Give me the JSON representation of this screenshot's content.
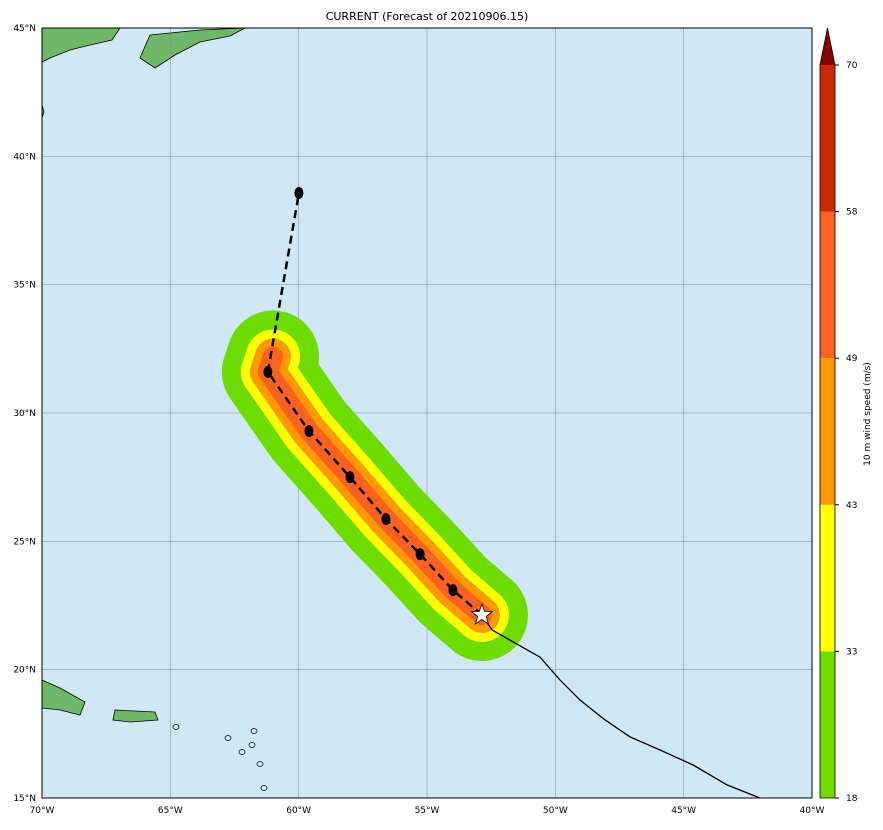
{
  "title": "CURRENT (Forecast of 20210906.15)",
  "map": {
    "lon_range": [
      -70,
      -40
    ],
    "lat_range": [
      15,
      45
    ],
    "ocean_color": "#d0e7f5",
    "land_color": "#6fb86a",
    "lon_ticks": [
      -70,
      -65,
      -60,
      -55,
      -50,
      -45,
      -40
    ],
    "lon_labels": [
      "70°W",
      "65°W",
      "60°W",
      "55°W",
      "50°W",
      "45°W",
      "40°W"
    ],
    "lat_ticks": [
      15,
      20,
      25,
      30,
      35,
      40,
      45
    ],
    "lat_labels": [
      "15°N",
      "20°N",
      "25°N",
      "30°N",
      "35°N",
      "40°N",
      "45°N"
    ]
  },
  "current_position": {
    "lon": -52.86,
    "lat": 22.13,
    "icon": "star-icon"
  },
  "forecast_track": [
    {
      "lon": -52.86,
      "lat": 22.13
    },
    {
      "lon": -53.99,
      "lat": 23.1
    },
    {
      "lon": -55.27,
      "lat": 24.5
    },
    {
      "lon": -56.6,
      "lat": 25.87
    },
    {
      "lon": -58.0,
      "lat": 27.5
    },
    {
      "lon": -59.6,
      "lat": 29.3
    },
    {
      "lon": -61.2,
      "lat": 31.6
    },
    {
      "lon": -59.99,
      "lat": 38.57
    }
  ],
  "past_track": [
    {
      "lon": -52.86,
      "lat": 22.13
    },
    {
      "lon": -52.47,
      "lat": 21.55
    },
    {
      "lon": -50.6,
      "lat": 20.49
    },
    {
      "lon": -49.82,
      "lat": 19.6
    },
    {
      "lon": -49.04,
      "lat": 18.82
    },
    {
      "lon": -48.06,
      "lat": 18.04
    },
    {
      "lon": -47.09,
      "lat": 17.38
    },
    {
      "lon": -45.92,
      "lat": 16.87
    },
    {
      "lon": -44.64,
      "lat": 16.29
    },
    {
      "lon": -43.31,
      "lat": 15.51
    },
    {
      "lon": -42.03,
      "lat": 15.0
    }
  ],
  "colorbar": {
    "label": "10 m wind speed (m/s)",
    "ticks": [
      "18",
      "33",
      "43",
      "49",
      "58",
      "70"
    ],
    "levels": [
      18,
      33,
      43,
      49,
      58,
      70
    ],
    "colors": [
      "#6fdc00",
      "#ffff00",
      "#ff9900",
      "#ff6122",
      "#cc2a00"
    ],
    "extend_color": "#8b0000"
  }
}
